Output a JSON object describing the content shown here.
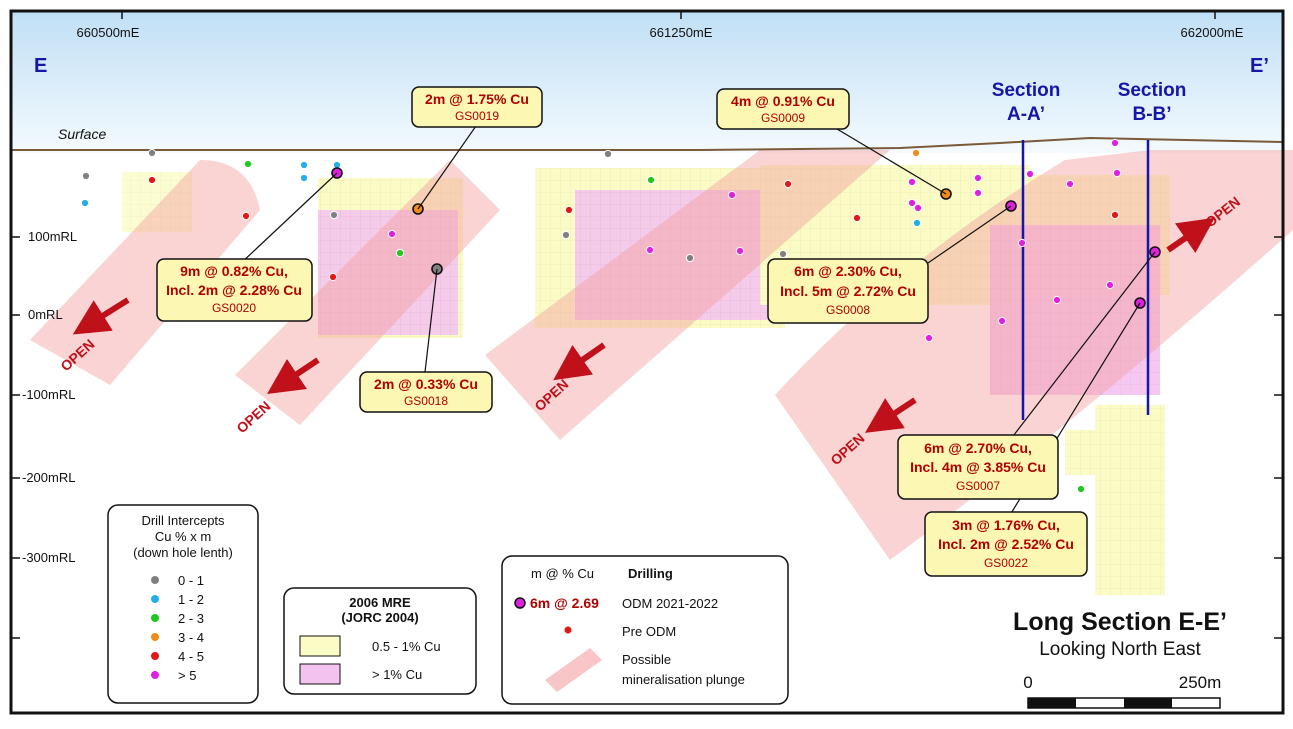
{
  "easting_labels": [
    "660500mE",
    "661250mE",
    "662000mE"
  ],
  "rl_labels": [
    "100mRL",
    "0mRL",
    "-100mRL",
    "-200mRL",
    "-300mRL"
  ],
  "section_end_left": "E",
  "section_end_right": "E’",
  "surface_label": "Surface",
  "sections": [
    {
      "line1": "Section",
      "line2": "A-A’"
    },
    {
      "line1": "Section",
      "line2": "B-B’"
    }
  ],
  "open_label": "OPEN",
  "callouts": [
    {
      "line1": "2m @ 1.75% Cu",
      "line2": "",
      "hole": "GS0019"
    },
    {
      "line1": "4m @ 0.91% Cu",
      "line2": "",
      "hole": "GS0009"
    },
    {
      "line1": "9m @ 0.82% Cu,",
      "line2": "Incl. 2m @ 2.28% Cu",
      "hole": "GS0020"
    },
    {
      "line1": "6m @ 2.30% Cu,",
      "line2": "Incl. 5m @ 2.72% Cu",
      "hole": "GS0008"
    },
    {
      "line1": "2m @ 0.33% Cu",
      "line2": "",
      "hole": "GS0018"
    },
    {
      "line1": "6m @ 2.70% Cu,",
      "line2": "Incl. 4m @ 3.85% Cu",
      "hole": "GS0007"
    },
    {
      "line1": "3m @ 1.76% Cu,",
      "line2": "Incl. 2m @ 2.52% Cu",
      "hole": "GS0022"
    }
  ],
  "legend_intercepts": {
    "title_lines": [
      "Drill Intercepts",
      "Cu % x m",
      "(down hole lenth)"
    ],
    "items": [
      {
        "label": "0 - 1",
        "color": "#808080"
      },
      {
        "label": "1 - 2",
        "color": "#22aee8"
      },
      {
        "label": "2 - 3",
        "color": "#1ec81e"
      },
      {
        "label": "3 - 4",
        "color": "#f08c1a"
      },
      {
        "label": "4 - 5",
        "color": "#e01818"
      },
      {
        "label": "> 5",
        "color": "#e020e0"
      }
    ]
  },
  "legend_mre": {
    "title_lines": [
      "2006 MRE",
      "(JORC 2004)"
    ],
    "items": [
      {
        "label": "0.5 - 1% Cu",
        "color": "#fbfbc8"
      },
      {
        "label": "> 1% Cu",
        "color": "#f7c8f0"
      }
    ]
  },
  "legend_drilling": {
    "header_left": "m @ % Cu",
    "header_right": "Drilling",
    "sample_value": "6m @ 2.69",
    "odm_label": "ODM 2021-2022",
    "pre_label": "Pre ODM",
    "plunge_label_lines": [
      "Possible",
      "mineralisation plunge"
    ]
  },
  "title": {
    "main": "Long Section E-E’",
    "sub": "Looking North East"
  },
  "scale_bar": {
    "start": "0",
    "end": "250m"
  },
  "colors": {
    "sky_top": "#c6e3f6",
    "plunge": "#f7b0b0",
    "callout_fill": "#fdf7b4",
    "label_red": "#b00000",
    "section_blue": "#1515a8",
    "surface_brown": "#7a5a3a"
  }
}
